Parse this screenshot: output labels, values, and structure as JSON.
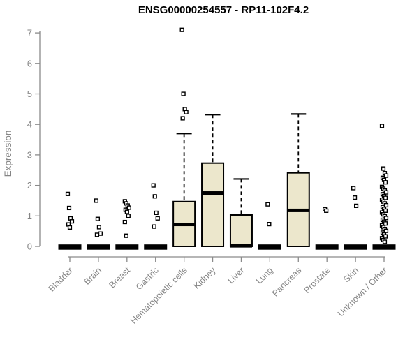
{
  "title": "ENSG00000254557 - RP11-102F4.2",
  "chart_data": {
    "type": "boxplot",
    "title": "ENSG00000254557 - RP11-102F4.2",
    "xlabel": "",
    "ylabel": "Expression",
    "ylim": [
      0,
      7
    ],
    "yticks": [
      0,
      1,
      2,
      3,
      4,
      5,
      6,
      7
    ],
    "grid": false,
    "legend": null,
    "categories": [
      "Bladder",
      "Brain",
      "Breast",
      "Gastric",
      "Hematopoietic cells",
      "Kidney",
      "Liver",
      "Lung",
      "Pancreas",
      "Prostate",
      "Skin",
      "Unknown / Other"
    ],
    "boxes": [
      {
        "category": "Bladder",
        "q1": 0,
        "median": 0,
        "q3": 0,
        "whisker_low": 0,
        "whisker_high": 0,
        "outliers": [
          1.72,
          1.26,
          0.92,
          0.82,
          0.72,
          0.62
        ]
      },
      {
        "category": "Brain",
        "q1": 0,
        "median": 0,
        "q3": 0,
        "whisker_low": 0,
        "whisker_high": 0,
        "outliers": [
          1.5,
          0.9,
          0.63,
          0.42,
          0.38
        ]
      },
      {
        "category": "Breast",
        "q1": 0,
        "median": 0,
        "q3": 0,
        "whisker_low": 0,
        "whisker_high": 0,
        "outliers": [
          1.48,
          1.41,
          1.34,
          1.27,
          1.2,
          1.13,
          1.0,
          0.8,
          0.35
        ]
      },
      {
        "category": "Gastric",
        "q1": 0,
        "median": 0,
        "q3": 0,
        "whisker_low": 0,
        "whisker_high": 0,
        "outliers": [
          2.0,
          1.64,
          1.1,
          0.92,
          0.65
        ]
      },
      {
        "category": "Hematopoietic cells",
        "q1": 0,
        "median": 0.72,
        "q3": 1.47,
        "whisker_low": 0,
        "whisker_high": 3.7,
        "outliers": [
          7.1,
          5.0,
          4.5,
          4.4,
          4.2
        ]
      },
      {
        "category": "Kidney",
        "q1": 0,
        "median": 1.75,
        "q3": 2.73,
        "whisker_low": 0,
        "whisker_high": 4.32,
        "outliers": []
      },
      {
        "category": "Liver",
        "q1": 0,
        "median": 0.02,
        "q3": 1.03,
        "whisker_low": 0,
        "whisker_high": 2.21,
        "outliers": []
      },
      {
        "category": "Lung",
        "q1": 0,
        "median": 0,
        "q3": 0,
        "whisker_low": 0,
        "whisker_high": 0,
        "outliers": [
          1.38,
          0.73
        ]
      },
      {
        "category": "Pancreas",
        "q1": 0,
        "median": 1.18,
        "q3": 2.41,
        "whisker_low": 0,
        "whisker_high": 4.34,
        "outliers": []
      },
      {
        "category": "Prostate",
        "q1": 0,
        "median": 0,
        "q3": 0,
        "whisker_low": 0,
        "whisker_high": 0,
        "outliers": [
          1.22,
          1.17
        ]
      },
      {
        "category": "Skin",
        "q1": 0,
        "median": 0,
        "q3": 0,
        "whisker_low": 0,
        "whisker_high": 0,
        "outliers": [
          1.91,
          1.6,
          1.33
        ]
      },
      {
        "category": "Unknown / Other",
        "q1": 0,
        "median": 0,
        "q3": 0,
        "whisker_low": 0,
        "whisker_high": 0,
        "outliers": [
          3.95,
          2.55,
          2.4,
          2.32,
          2.25,
          2.18,
          2.1,
          1.95,
          1.89,
          1.83,
          1.77,
          1.71,
          1.65,
          1.59,
          1.53,
          1.47,
          1.41,
          1.35,
          1.29,
          1.23,
          1.17,
          1.11,
          1.05,
          0.99,
          0.93,
          0.87,
          0.81,
          0.75,
          0.69,
          0.63,
          0.57,
          0.51,
          0.45,
          0.39,
          0.33,
          0.27,
          0.21,
          0.15
        ]
      }
    ],
    "colors": {
      "box_fill": "#ECE7CC",
      "box_border": "#000000",
      "median": "#000000",
      "whisker": "#000000",
      "outlier_stroke": "#000000",
      "outlier_fill": "#FFFFFF",
      "axis": "#8A8A8A",
      "tick_label": "#858585",
      "title": "#000000"
    }
  }
}
